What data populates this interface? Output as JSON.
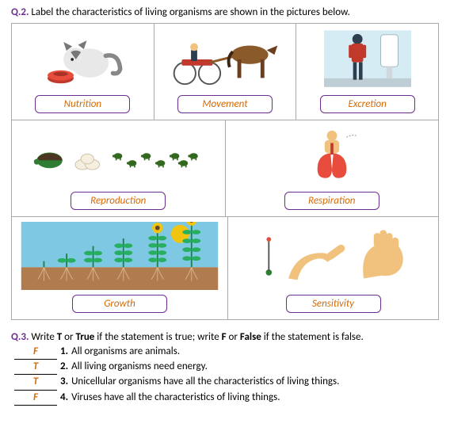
{
  "q2": {
    "numLabel": "Q.2.",
    "prompt": "Label the characteristics of living organisms are shown in the pictures below.",
    "accent_color": "#6b2e8f",
    "answer_color": "#d46b08",
    "rows": [
      {
        "cells": [
          {
            "name": "cell-nutrition",
            "label": "Nutrition",
            "icon": "cat-eating"
          },
          {
            "name": "cell-movement",
            "label": "Movement",
            "icon": "horse-racing"
          },
          {
            "name": "cell-excretion",
            "label": "Excretion",
            "icon": "man-urinal"
          }
        ]
      },
      {
        "cells": [
          {
            "name": "cell-reproduction",
            "label": "Reproduction",
            "icon": "turtle-eggs"
          },
          {
            "name": "cell-respiration",
            "label": "Respiration",
            "icon": "lungs"
          }
        ]
      },
      {
        "cells": [
          {
            "name": "cell-growth",
            "label": "Growth",
            "icon": "plant-growth"
          },
          {
            "name": "cell-sensitivity",
            "label": "Sensitivity",
            "icon": "hands-touch"
          }
        ]
      }
    ]
  },
  "q3": {
    "numLabel": "Q.3.",
    "prompt_pre": "Write ",
    "prompt_t": "T",
    "prompt_mid1": " or ",
    "prompt_true": "True",
    "prompt_mid2": " if the statement is true; write ",
    "prompt_f": "F",
    "prompt_mid3": " or ",
    "prompt_false": "False",
    "prompt_post": " if the statement is false.",
    "items": [
      {
        "num": "1.",
        "answer": "F",
        "statement": "All organisms are animals."
      },
      {
        "num": "2.",
        "answer": "T",
        "statement": "All living organisms need energy."
      },
      {
        "num": "3.",
        "answer": "T",
        "statement": "Unicellular organisms have all the characteristics of living things."
      },
      {
        "num": "4.",
        "answer": "F",
        "statement": "Viruses have all the characteristics of living things."
      }
    ]
  }
}
